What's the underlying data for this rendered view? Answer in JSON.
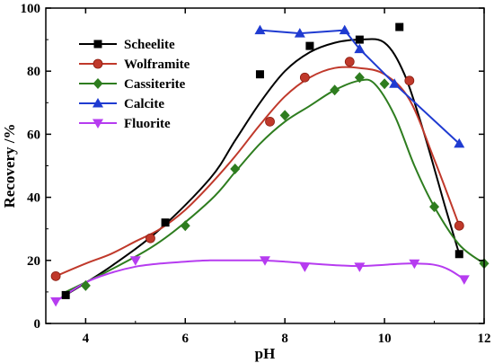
{
  "chart_data": {
    "type": "scatter",
    "xlabel": "pH",
    "ylabel": "Recovery /%",
    "xlim": [
      3.2,
      12
    ],
    "ylim": [
      0,
      100
    ],
    "x_ticks": [
      "4",
      "6",
      "8",
      "10",
      "12"
    ],
    "y_ticks": [
      "0",
      "20",
      "40",
      "60",
      "80",
      "100"
    ],
    "legend_position": "top-left",
    "grid": false,
    "series": [
      {
        "name": "Scheelite",
        "color": "#000000",
        "marker": "square",
        "x": [
          3.6,
          5.6,
          7.5,
          8.5,
          9.5,
          10.3,
          11.5
        ],
        "y": [
          9,
          32,
          79,
          88,
          90,
          94,
          22
        ],
        "curve_x": [
          3.6,
          4.5,
          5.5,
          6.5,
          7.0,
          7.5,
          8.0,
          8.5,
          9.0,
          9.5,
          10.0,
          10.4,
          10.8,
          11.2,
          11.5
        ],
        "curve_y": [
          9,
          18,
          30,
          46,
          58,
          70,
          80,
          86,
          89,
          90,
          89,
          79,
          60,
          38,
          22
        ]
      },
      {
        "name": "Wolframite",
        "color": "#c0392b",
        "marker": "circle",
        "x": [
          3.4,
          5.3,
          7.7,
          8.4,
          9.3,
          10.5,
          11.5
        ],
        "y": [
          15,
          27,
          64,
          78,
          83,
          77,
          31
        ],
        "curve_x": [
          3.4,
          4.0,
          4.5,
          5.0,
          5.5,
          6.0,
          6.5,
          7.0,
          7.5,
          8.0,
          8.5,
          9.0,
          9.5,
          10.0,
          10.5,
          11.0,
          11.5
        ],
        "curve_y": [
          15,
          19,
          22,
          26,
          30,
          36,
          44,
          53,
          63,
          72,
          78,
          81,
          81,
          79,
          71,
          52,
          31
        ]
      },
      {
        "name": "Cassiterite",
        "color": "#2e7d1f",
        "marker": "diamond",
        "x": [
          4.0,
          6.0,
          7.0,
          8.0,
          9.0,
          9.5,
          10.0,
          11.0,
          12.0
        ],
        "y": [
          12,
          31,
          49,
          66,
          74,
          78,
          76,
          37,
          19
        ],
        "curve_x": [
          3.6,
          4.5,
          5.5,
          6.5,
          7.0,
          7.5,
          8.0,
          8.5,
          9.0,
          9.5,
          9.8,
          10.2,
          10.6,
          11.0,
          11.5,
          12.0
        ],
        "curve_y": [
          10,
          17,
          26,
          39,
          48,
          57,
          64,
          69,
          74,
          77,
          76,
          66,
          50,
          37,
          25,
          19
        ]
      },
      {
        "name": "Calcite",
        "color": "#1f3bd1",
        "marker": "triangle-up",
        "x": [
          7.5,
          8.3,
          9.2,
          9.5,
          10.2,
          11.5
        ],
        "y": [
          93,
          92,
          93,
          87,
          76,
          57
        ],
        "curve_x": [
          7.5,
          8.3,
          9.2,
          9.5,
          10.2,
          11.5
        ],
        "curve_y": [
          93,
          92,
          93,
          87,
          76,
          57
        ]
      },
      {
        "name": "Fluorite",
        "color": "#b63cf0",
        "marker": "triangle-down",
        "x": [
          3.4,
          5.0,
          7.6,
          8.4,
          9.5,
          10.6,
          11.6
        ],
        "y": [
          7,
          20,
          20,
          18,
          18,
          19,
          14
        ],
        "curve_x": [
          3.4,
          4.0,
          4.5,
          5.0,
          5.5,
          6.0,
          6.5,
          7.0,
          7.5,
          8.0,
          8.5,
          9.0,
          9.5,
          10.0,
          10.5,
          11.0,
          11.3,
          11.6
        ],
        "curve_y": [
          7,
          13,
          16,
          18,
          19,
          19.6,
          20,
          20,
          20,
          19.6,
          19,
          18.5,
          18.2,
          18.6,
          19,
          18.6,
          17,
          14
        ]
      }
    ]
  }
}
